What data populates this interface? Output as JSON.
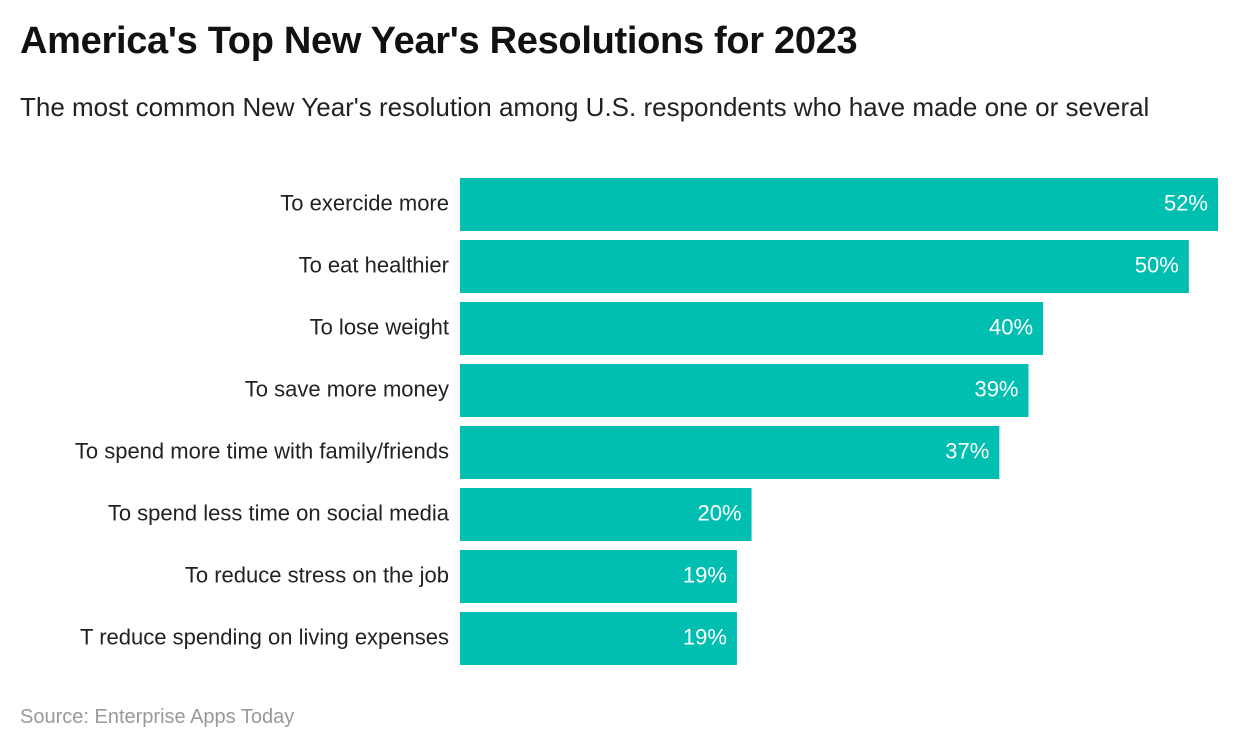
{
  "chart_data": {
    "type": "bar",
    "orientation": "horizontal",
    "title": "America's Top New Year's Resolutions for 2023",
    "subtitle": "The most common New Year's resolution among U.S. respondents who have made one or several",
    "source": "Source: Enterprise Apps Today",
    "categories": [
      "To exercide more",
      "To eat healthier",
      "To lose weight",
      "To save more money",
      "To spend more time with family/friends",
      "To spend less time on social media",
      "To reduce stress on the job",
      "T reduce spending on living expenses"
    ],
    "values": [
      52,
      50,
      40,
      39,
      37,
      20,
      19,
      19
    ],
    "value_labels": [
      "52%",
      "50%",
      "40%",
      "39%",
      "37%",
      "20%",
      "19%",
      "19%"
    ],
    "color": "#00bfb0"
  }
}
